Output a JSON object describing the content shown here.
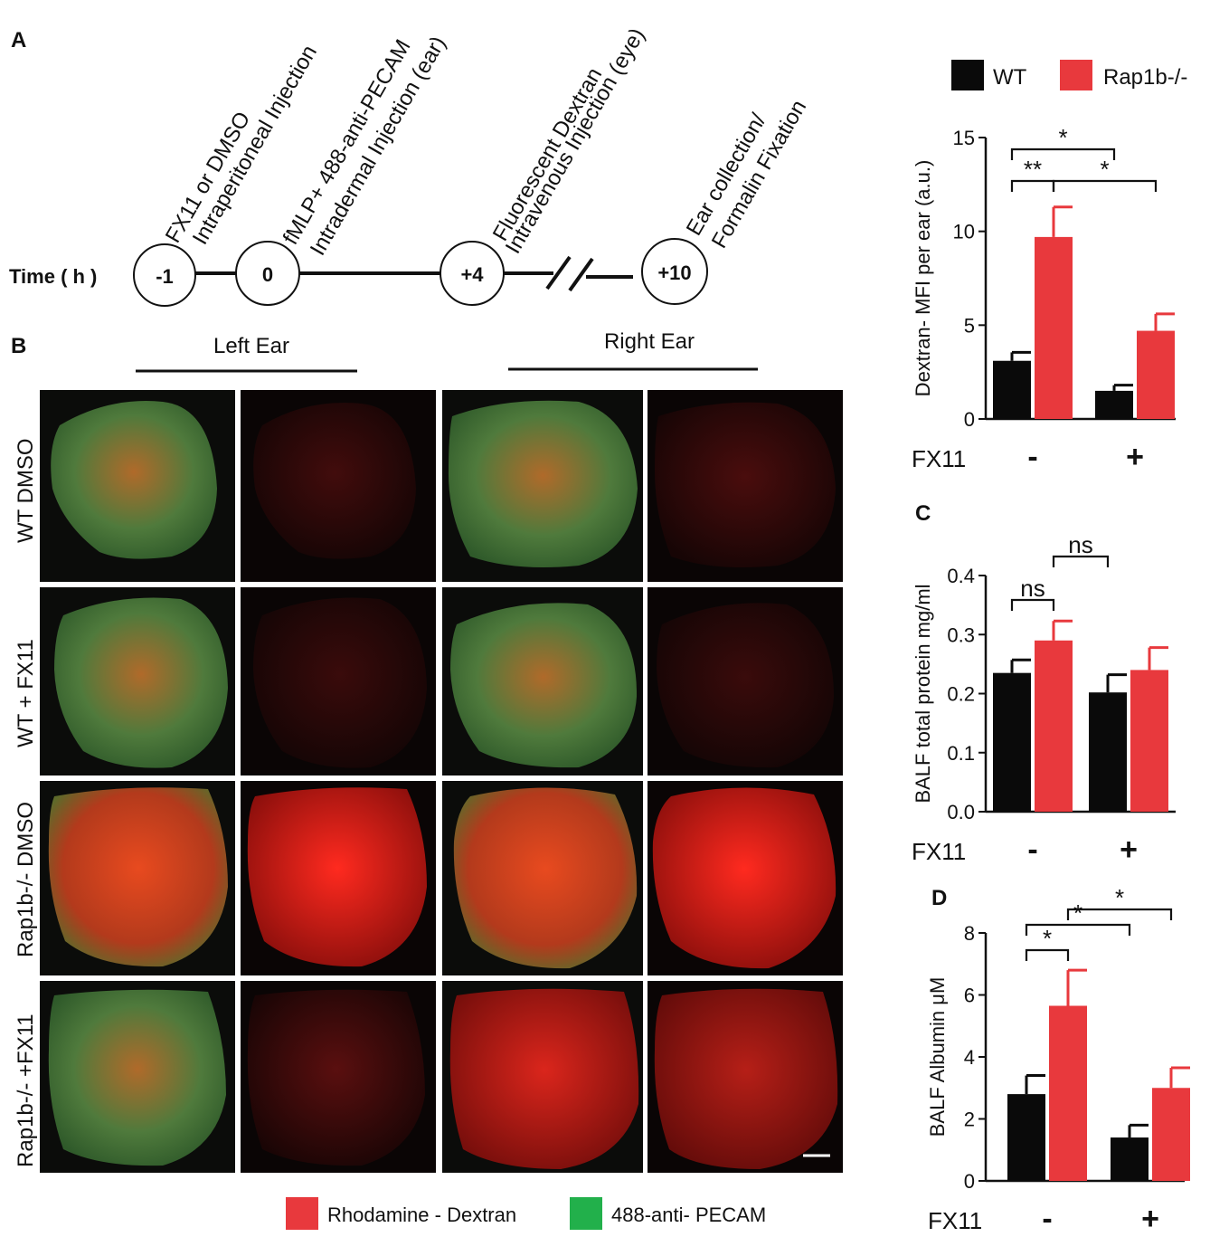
{
  "colors": {
    "wt": "#0a0a0a",
    "rap1b": "#e8393d",
    "dextran": "#e8393d",
    "pecam": "#22b04b"
  },
  "panelA": {
    "label": "A",
    "time_label": "Time ( h )",
    "timepoints": [
      "-1",
      "0",
      "+4",
      "+10"
    ],
    "steps": [
      {
        "line1": "FX11 or DMSO",
        "line2": "Intraperitoneal  Injection"
      },
      {
        "line1": "fMLP+ 488-anti-PECAM",
        "line2": "Intradermal Injection (ear)"
      },
      {
        "line1": "Fluorescent Dextran",
        "line2": "Intravenous Injection (eye)"
      },
      {
        "line1": "Ear collection/",
        "line2": "Formalin Fixation"
      }
    ]
  },
  "panelB": {
    "label": "B",
    "left_ear": "Left Ear",
    "right_ear": "Right Ear",
    "row_labels": [
      "WT DMSO",
      "WT + FX11",
      "Rap1b-/- DMSO",
      "Rap1b-/- +FX11"
    ],
    "legend": {
      "red": "Rhodamine  - Dextran",
      "green": "488-anti-  PECAM"
    }
  },
  "legend": {
    "wt": "WT",
    "rap1b": "Rap1b-/-"
  },
  "chart_data": [
    {
      "panel": "",
      "type": "bar",
      "categories": [
        "-",
        "+"
      ],
      "category_title": "FX11",
      "series": [
        {
          "name": "WT",
          "values": [
            3.1,
            1.5
          ],
          "errors": [
            0.45,
            0.3
          ]
        },
        {
          "name": "Rap1b-/-",
          "values": [
            9.7,
            4.7
          ],
          "errors": [
            1.6,
            0.9
          ]
        }
      ],
      "ylabel": "Dextran- MFI per ear (a.u.)",
      "ylim": [
        0,
        15
      ],
      "yticks": [
        "0",
        "5",
        "10",
        "15"
      ],
      "significance": [
        "*",
        "**",
        "*"
      ]
    },
    {
      "panel": "C",
      "type": "bar",
      "categories": [
        "-",
        "+"
      ],
      "category_title": "FX11",
      "series": [
        {
          "name": "WT",
          "values": [
            0.235,
            0.202
          ],
          "errors": [
            0.022,
            0.03
          ]
        },
        {
          "name": "Rap1b-/-",
          "values": [
            0.29,
            0.24
          ],
          "errors": [
            0.033,
            0.038
          ]
        }
      ],
      "ylabel": "BALF total protein mg/ml",
      "ylim": [
        0,
        0.4
      ],
      "yticks": [
        "0.0",
        "0.1",
        "0.2",
        "0.3",
        "0.4"
      ],
      "significance": [
        "ns",
        "ns"
      ]
    },
    {
      "panel": "D",
      "type": "bar",
      "categories": [
        "-",
        "+"
      ],
      "category_title": "FX11",
      "series": [
        {
          "name": "WT",
          "values": [
            2.8,
            1.4
          ],
          "errors": [
            0.6,
            0.4
          ]
        },
        {
          "name": "Rap1b-/-",
          "values": [
            5.65,
            3.0
          ],
          "errors": [
            1.15,
            0.65
          ]
        }
      ],
      "ylabel": "BALF Albumin μM",
      "ylim": [
        0,
        8
      ],
      "yticks": [
        "0",
        "2",
        "4",
        "6",
        "8"
      ],
      "significance": [
        "*",
        "*",
        "*"
      ]
    }
  ]
}
